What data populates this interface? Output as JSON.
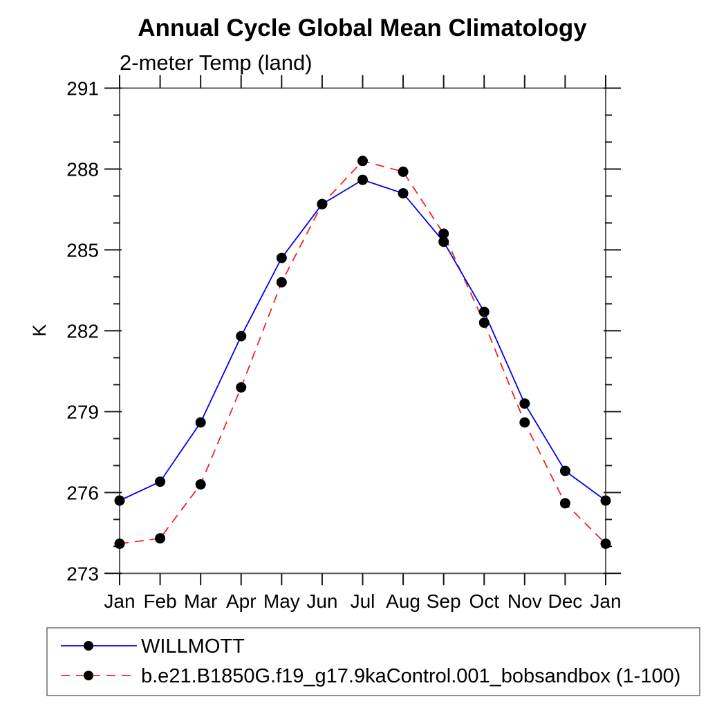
{
  "page": {
    "background": "#ffffff"
  },
  "chart_data": {
    "type": "line",
    "title": "Annual Cycle Global Mean Climatology",
    "subtitle": "2-meter Temp (land)",
    "ylabel": "K",
    "x_categories": [
      "Jan",
      "Feb",
      "Mar",
      "Apr",
      "May",
      "Jun",
      "Jul",
      "Aug",
      "Sep",
      "Oct",
      "Nov",
      "Dec",
      "Jan"
    ],
    "series": [
      {
        "name": "WILLMOTT",
        "color": "#0000ee",
        "line_style": "solid",
        "marker": "black-dot",
        "values": [
          275.7,
          276.4,
          278.6,
          281.8,
          284.7,
          286.7,
          287.6,
          287.1,
          285.3,
          282.7,
          279.3,
          276.8,
          275.7
        ]
      },
      {
        "name": "b.e21.B1850G.f19_g17.9kaControl.001_bobsandbox (1-100)",
        "color": "#f42020",
        "line_style": "dashed",
        "marker": "black-dot",
        "values": [
          274.1,
          274.3,
          276.3,
          279.9,
          283.8,
          286.7,
          288.3,
          287.9,
          285.6,
          282.3,
          278.6,
          275.6,
          274.1
        ]
      }
    ],
    "ylim": [
      273,
      291
    ],
    "yticks": [
      273,
      276,
      279,
      282,
      285,
      288,
      291
    ],
    "minor_tick_interval": 1,
    "grid": false,
    "legend_position": "bottom-left-box",
    "marker_color": "#000000",
    "axis_color": "#5a5a5a",
    "tick_color": "#151515"
  }
}
